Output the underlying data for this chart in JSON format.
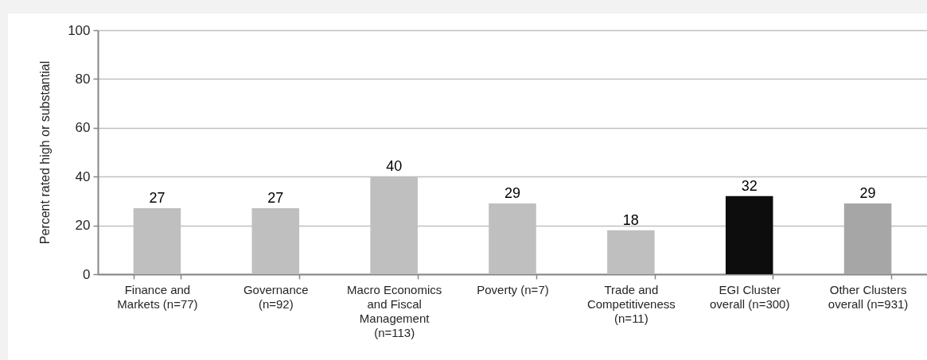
{
  "chart_data": {
    "type": "bar",
    "ylabel": "Percent rated high or substantial",
    "categories": [
      "Finance and Markets (n=77)",
      "Governance (n=92)",
      "Macro Economics and Fiscal Management (n=113)",
      "Poverty (n=7)",
      "Trade and Competitiveness (n=11)",
      "EGI Cluster overall (n=300)",
      "Other Clusters overall (n=931)"
    ],
    "values": [
      27,
      27,
      40,
      29,
      18,
      32,
      29
    ],
    "colors": [
      "#bfbfbf",
      "#bfbfbf",
      "#bfbfbf",
      "#bfbfbf",
      "#bfbfbf",
      "#0d0d0d",
      "#a6a6a6"
    ],
    "ylim": [
      0,
      100
    ],
    "yticks": [
      0,
      20,
      40,
      60,
      80,
      100
    ],
    "grid": "y",
    "data_labels": true
  }
}
